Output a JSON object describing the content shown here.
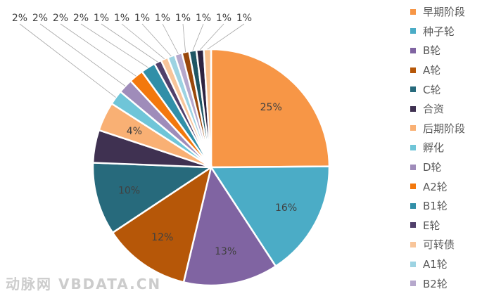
{
  "chart_data": {
    "type": "pie",
    "start": "top, clockwise",
    "slices": [
      {
        "name": "早期阶段",
        "value": 25,
        "label": "25%",
        "color": "#F79646"
      },
      {
        "name": "种子轮",
        "value": 16,
        "label": "16%",
        "color": "#4BACC6"
      },
      {
        "name": "B轮",
        "value": 13,
        "label": "13%",
        "color": "#8064A2"
      },
      {
        "name": "A轮",
        "value": 12,
        "label": "12%",
        "color": "#B65708"
      },
      {
        "name": "C轮",
        "value": 10,
        "label": "10%",
        "color": "#276A7C"
      },
      {
        "name": "合资",
        "value": 4.5,
        "label": "",
        "color": "#3F3151"
      },
      {
        "name": "后期阶段",
        "value": 4,
        "label": "4%",
        "color": "#F9B074"
      },
      {
        "name": "孵化",
        "value": 2,
        "label": "2%",
        "color": "#6FC5D8"
      },
      {
        "name": "D轮",
        "value": 2,
        "label": "2%",
        "color": "#9F8CBA"
      },
      {
        "name": "A2轮",
        "value": 2,
        "label": "2%",
        "color": "#F3780D"
      },
      {
        "name": "B1轮",
        "value": 2,
        "label": "2%",
        "color": "#318FA8"
      },
      {
        "name": "E轮",
        "value": 1,
        "label": "1%",
        "color": "#51406B"
      },
      {
        "name": "可转债",
        "value": 1,
        "label": "1%",
        "color": "#F8C59A"
      },
      {
        "name": "A1轮",
        "value": 1,
        "label": "1%",
        "color": "#9DD3E2"
      },
      {
        "name": "B2轮",
        "value": 1,
        "label": "1%",
        "color": "#B6A8CC"
      },
      {
        "name": "",
        "value": 1,
        "label": "1%",
        "color": "#99470A"
      },
      {
        "name": "",
        "value": 1,
        "label": "1%",
        "color": "#1F5664"
      },
      {
        "name": "",
        "value": 1,
        "label": "1%",
        "color": "#2E2340"
      },
      {
        "name": "",
        "value": 1,
        "label": "1%",
        "color": "#F9BF8C"
      }
    ],
    "legend": "right"
  },
  "legend_items": [
    "早期阶段",
    "种子轮",
    "B轮",
    "A轮",
    "C轮",
    "合资",
    "后期阶段",
    "孵化",
    "D轮",
    "A2轮",
    "B1轮",
    "E轮",
    "可转债",
    "A1轮",
    "B2轮"
  ],
  "watermark": "动脉网 VBDATA.CN"
}
